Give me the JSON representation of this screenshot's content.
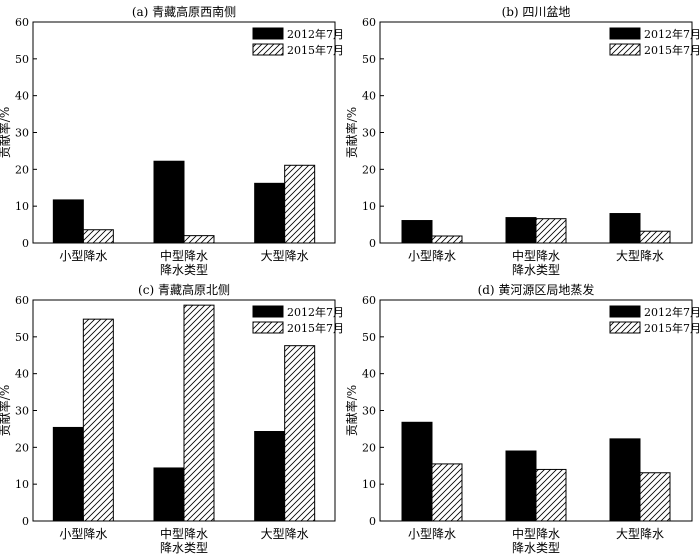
{
  "colors": {
    "series_2012": "#000000",
    "series_2015": "#ffffff",
    "axis": "#000000"
  },
  "chart_data": [
    {
      "type": "bar",
      "title": "(a) 青藏高原西南侧",
      "categories": [
        "小型降水",
        "中型降水",
        "大型降水"
      ],
      "series": [
        {
          "name": "2012年7月",
          "values": [
            11.7,
            22.2,
            16.2
          ]
        },
        {
          "name": "2015年7月",
          "values": [
            3.6,
            2.0,
            21.1
          ]
        }
      ],
      "xlabel": "降水类型",
      "ylabel": "贡献率/%",
      "ylim": [
        0,
        60
      ],
      "yticks": [
        0,
        10,
        20,
        30,
        40,
        50,
        60
      ],
      "legend": "top-right",
      "grid": false
    },
    {
      "type": "bar",
      "title": "(b) 四川盆地",
      "categories": [
        "小型降水",
        "中型降水",
        "大型降水"
      ],
      "series": [
        {
          "name": "2012年7月",
          "values": [
            6.1,
            6.9,
            8.0
          ]
        },
        {
          "name": "2015年7月",
          "values": [
            1.9,
            6.6,
            3.2
          ]
        }
      ],
      "xlabel": "降水类型",
      "ylabel": "贡献率/%",
      "ylim": [
        0,
        60
      ],
      "yticks": [
        0,
        10,
        20,
        30,
        40,
        50,
        60
      ],
      "legend": "top-right",
      "grid": false
    },
    {
      "type": "bar",
      "title": "(c) 青藏高原北侧",
      "categories": [
        "小型降水",
        "中型降水",
        "大型降水"
      ],
      "series": [
        {
          "name": "2012年7月",
          "values": [
            25.4,
            14.4,
            24.3
          ]
        },
        {
          "name": "2015年7月",
          "values": [
            54.8,
            58.6,
            47.6
          ]
        }
      ],
      "xlabel": "降水类型",
      "ylabel": "贡献率/%",
      "ylim": [
        0,
        60
      ],
      "yticks": [
        0,
        10,
        20,
        30,
        40,
        50,
        60
      ],
      "legend": "top-right",
      "grid": false
    },
    {
      "type": "bar",
      "title": "(d) 黄河源区局地蒸发",
      "categories": [
        "小型降水",
        "中型降水",
        "大型降水"
      ],
      "series": [
        {
          "name": "2012年7月",
          "values": [
            26.8,
            19.0,
            22.3
          ]
        },
        {
          "name": "2015年7月",
          "values": [
            15.5,
            14.0,
            13.1
          ]
        }
      ],
      "xlabel": "降水类型",
      "ylabel": "贡献率/%",
      "ylim": [
        0,
        60
      ],
      "yticks": [
        0,
        10,
        20,
        30,
        40,
        50,
        60
      ],
      "legend": "top-right",
      "grid": false
    }
  ]
}
